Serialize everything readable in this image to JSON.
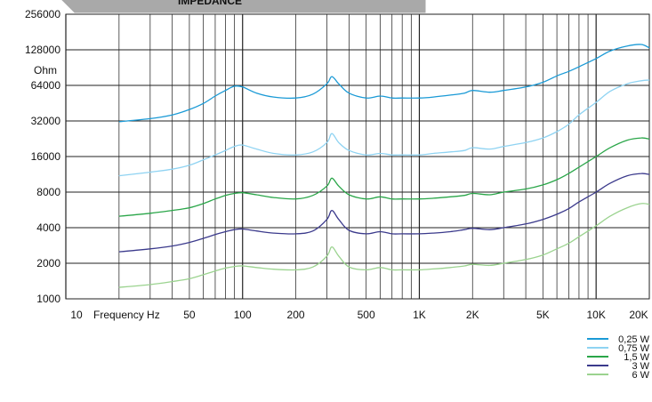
{
  "chart_data": {
    "type": "line",
    "title": "IMPEDANCE",
    "xlabel": "Frequency Hz",
    "ylabel": "Ohm",
    "x_scale": "log",
    "y_scale": "log",
    "xlim": [
      10,
      20000
    ],
    "ylim": [
      1000,
      256000
    ],
    "x_ticks": [
      {
        "value": 10,
        "label": "10"
      },
      {
        "value": 50,
        "label": "50"
      },
      {
        "value": 100,
        "label": "100"
      },
      {
        "value": 200,
        "label": "200"
      },
      {
        "value": 500,
        "label": "500"
      },
      {
        "value": 1000,
        "label": "1K"
      },
      {
        "value": 2000,
        "label": "2K"
      },
      {
        "value": 5000,
        "label": "5K"
      },
      {
        "value": 10000,
        "label": "10K"
      },
      {
        "value": 20000,
        "label": "20K"
      }
    ],
    "y_ticks": [
      {
        "value": 1000,
        "label": "1000"
      },
      {
        "value": 2000,
        "label": "2000"
      },
      {
        "value": 4000,
        "label": "4000"
      },
      {
        "value": 8000,
        "label": "8000"
      },
      {
        "value": 16000,
        "label": "16000"
      },
      {
        "value": 32000,
        "label": "32000"
      },
      {
        "value": 64000,
        "label": "64000"
      },
      {
        "value": 128000,
        "label": "128000"
      },
      {
        "value": 256000,
        "label": "256000"
      }
    ],
    "grid": true,
    "legend_position": "bottom-right",
    "x": [
      20,
      30,
      40,
      50,
      60,
      70,
      80,
      90,
      100,
      120,
      150,
      200,
      250,
      300,
      320,
      350,
      400,
      500,
      600,
      700,
      800,
      1000,
      1200,
      1500,
      1800,
      2000,
      2500,
      3000,
      4000,
      5000,
      6000,
      7000,
      8000,
      10000,
      12000,
      15000,
      18000,
      20000
    ],
    "series": [
      {
        "name": "0,25 W",
        "color": "#1a9ad6",
        "values": [
          31500,
          33500,
          36000,
          40000,
          45000,
          52000,
          58000,
          63000,
          62000,
          55000,
          51000,
          50000,
          54000,
          66000,
          76000,
          66000,
          55000,
          50000,
          52000,
          50000,
          50000,
          50000,
          51000,
          53000,
          55000,
          58000,
          56000,
          58000,
          62000,
          68000,
          77000,
          84000,
          92000,
          108000,
          125000,
          138000,
          142000,
          133000
        ]
      },
      {
        "name": "0,75 W",
        "color": "#8fd3f2",
        "values": [
          11000,
          11800,
          12500,
          13500,
          15000,
          16500,
          18000,
          19500,
          20000,
          18500,
          17000,
          16500,
          17500,
          21000,
          25000,
          21000,
          18000,
          16500,
          17000,
          16500,
          16500,
          16500,
          17000,
          17500,
          18000,
          19000,
          18500,
          19500,
          21000,
          23000,
          26000,
          30000,
          36000,
          46000,
          57000,
          66000,
          70000,
          71000
        ]
      },
      {
        "name": "1,5 W",
        "color": "#2aa649",
        "values": [
          5000,
          5300,
          5600,
          5900,
          6400,
          7000,
          7500,
          7800,
          7900,
          7600,
          7200,
          7000,
          7500,
          9000,
          10500,
          9000,
          7600,
          7000,
          7300,
          7000,
          7000,
          7000,
          7100,
          7300,
          7500,
          7800,
          7600,
          8000,
          8500,
          9200,
          10200,
          11500,
          13000,
          16000,
          19000,
          22000,
          23000,
          22500
        ]
      },
      {
        "name": "3 W",
        "color": "#3b3a8c",
        "values": [
          2500,
          2650,
          2800,
          3000,
          3250,
          3500,
          3700,
          3850,
          3900,
          3750,
          3600,
          3550,
          3750,
          4700,
          5600,
          4700,
          3800,
          3550,
          3700,
          3550,
          3550,
          3550,
          3600,
          3700,
          3850,
          3950,
          3850,
          4000,
          4300,
          4700,
          5200,
          5800,
          6600,
          8000,
          9500,
          11000,
          11500,
          11300
        ]
      },
      {
        "name": "6 W",
        "color": "#9bd38f",
        "values": [
          1250,
          1320,
          1400,
          1480,
          1600,
          1720,
          1820,
          1880,
          1900,
          1840,
          1780,
          1760,
          1860,
          2300,
          2750,
          2300,
          1860,
          1760,
          1840,
          1760,
          1760,
          1760,
          1790,
          1840,
          1900,
          1960,
          1920,
          2000,
          2150,
          2350,
          2650,
          2950,
          3350,
          4150,
          5000,
          5900,
          6400,
          6300
        ]
      }
    ]
  }
}
